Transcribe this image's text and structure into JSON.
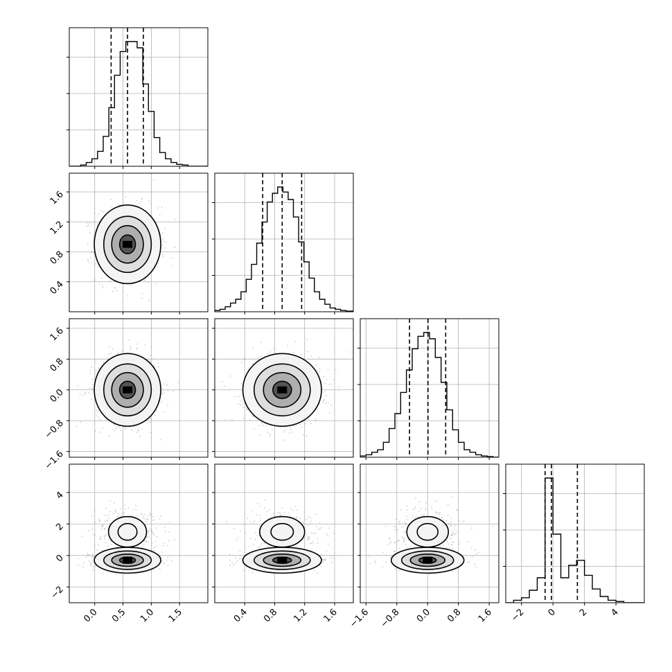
{
  "chart_data": {
    "type": "corner",
    "description": "Corner plot of 4 parameters: 1D histograms on diagonal, 2D density contours below",
    "grid": true,
    "parameters": [
      {
        "id": "p0",
        "range": [
          -0.45,
          2.0
        ],
        "ticks": [
          0.0,
          0.5,
          1.0,
          1.5
        ],
        "tick_labels": [
          "0.0",
          "0.5",
          "1.0",
          "1.5"
        ],
        "quantiles": [
          0.29,
          0.58,
          0.86
        ],
        "histogram": {
          "edges": [
            -0.45,
            -0.35,
            -0.25,
            -0.15,
            -0.05,
            0.05,
            0.15,
            0.25,
            0.35,
            0.45,
            0.55,
            0.65,
            0.75,
            0.85,
            0.95,
            1.05,
            1.15,
            1.25,
            1.35,
            1.45,
            1.55,
            1.65,
            1.75,
            1.85,
            1.95,
            2.0
          ],
          "counts": [
            0,
            0,
            0.01,
            0.03,
            0.06,
            0.12,
            0.24,
            0.47,
            0.73,
            0.92,
            1.0,
            1.0,
            0.95,
            0.66,
            0.44,
            0.23,
            0.11,
            0.06,
            0.03,
            0.015,
            0.01,
            0,
            0,
            0,
            0
          ]
        }
      },
      {
        "id": "p1",
        "range": [
          0.0,
          1.85
        ],
        "ticks": [
          0.4,
          0.8,
          1.2,
          1.6
        ],
        "tick_labels": [
          "0.4",
          "0.8",
          "1.2",
          "1.6"
        ],
        "quantiles": [
          0.64,
          0.9,
          1.16
        ],
        "histogram": {
          "edges": [
            0.0,
            0.07,
            0.14,
            0.21,
            0.28,
            0.35,
            0.42,
            0.49,
            0.56,
            0.63,
            0.7,
            0.77,
            0.84,
            0.91,
            0.98,
            1.05,
            1.12,
            1.19,
            1.26,
            1.33,
            1.4,
            1.47,
            1.54,
            1.61,
            1.68,
            1.75,
            1.85
          ],
          "counts": [
            0.01,
            0.02,
            0.04,
            0.07,
            0.1,
            0.16,
            0.26,
            0.38,
            0.55,
            0.72,
            0.88,
            0.95,
            1.0,
            0.96,
            0.9,
            0.76,
            0.56,
            0.4,
            0.27,
            0.16,
            0.1,
            0.06,
            0.03,
            0.02,
            0.01,
            0.005
          ]
        }
      },
      {
        "id": "p2",
        "range": [
          -1.75,
          1.85
        ],
        "ticks": [
          -1.6,
          -0.8,
          0.0,
          0.8,
          1.6
        ],
        "tick_labels": [
          "−1.6",
          "−0.8",
          "0.0",
          "0.8",
          "1.6"
        ],
        "quantiles": [
          -0.47,
          0.01,
          0.47
        ],
        "histogram": {
          "edges": [
            -1.75,
            -1.6,
            -1.45,
            -1.3,
            -1.15,
            -1.0,
            -0.85,
            -0.7,
            -0.55,
            -0.4,
            -0.25,
            -0.1,
            0.05,
            0.2,
            0.35,
            0.5,
            0.65,
            0.8,
            0.95,
            1.1,
            1.25,
            1.4,
            1.55,
            1.7,
            1.85
          ],
          "counts": [
            0.01,
            0.02,
            0.04,
            0.06,
            0.12,
            0.23,
            0.35,
            0.52,
            0.7,
            0.87,
            0.97,
            1.0,
            0.95,
            0.8,
            0.6,
            0.38,
            0.22,
            0.12,
            0.06,
            0.04,
            0.02,
            0.01,
            0.005,
            0
          ]
        }
      },
      {
        "id": "p3",
        "range": [
          -3.0,
          5.8
        ],
        "ticks": [
          -2,
          0,
          2,
          4
        ],
        "tick_labels": [
          "−2",
          "0",
          "2",
          "4"
        ],
        "quantiles": [
          -0.5,
          -0.1,
          1.55
        ],
        "histogram": {
          "edges": [
            -3.0,
            -2.5,
            -2.0,
            -1.5,
            -1.0,
            -0.5,
            0.0,
            0.5,
            1.0,
            1.5,
            2.0,
            2.5,
            3.0,
            3.5,
            4.0,
            4.5,
            5.0,
            5.8
          ],
          "counts": [
            0,
            0.02,
            0.04,
            0.1,
            0.2,
            1.0,
            0.55,
            0.2,
            0.3,
            0.34,
            0.22,
            0.11,
            0.05,
            0.02,
            0.01,
            0,
            0
          ]
        }
      }
    ]
  }
}
